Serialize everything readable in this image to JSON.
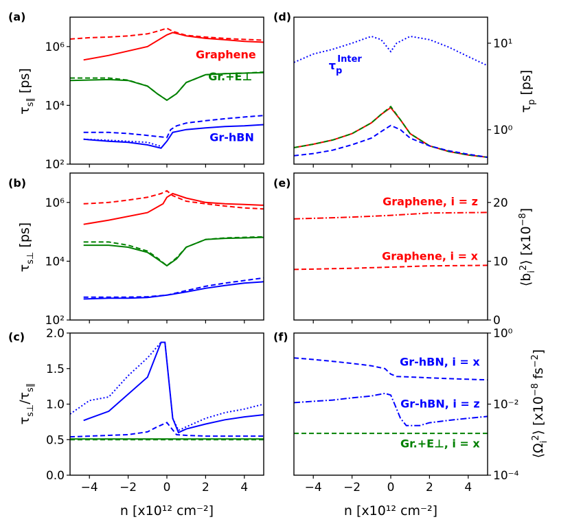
{
  "figure": {
    "panel_labels": [
      "(a)",
      "(b)",
      "(c)",
      "(d)",
      "(e)",
      "(f)"
    ],
    "x_axis_label": "n [x10¹² cm⁻²]",
    "colors": {
      "graphene": "#ff0000",
      "gr_eperp": "#008000",
      "gr_hbn": "#0000ff"
    }
  },
  "chart_data": [
    {
      "id": "a",
      "type": "line",
      "label": "(a)",
      "ylabel": "τ_s∥ [ps]",
      "yscale": "log",
      "ylim": [
        100,
        10000000
      ],
      "xlim": [
        -5,
        5
      ],
      "xticks": [
        -4,
        -2,
        0,
        2,
        4
      ],
      "yticks": [
        "10²",
        "10⁴",
        "10⁶"
      ],
      "annotations": [
        {
          "text": "Graphene",
          "color": "#ff0000",
          "x": 4.6,
          "y": 400000
        },
        {
          "text": "Gr.+E⊥",
          "color": "#008000",
          "x": 4.4,
          "y": 70000
        },
        {
          "text": "Gr-hBN",
          "color": "#0000ff",
          "x": 4.5,
          "y": 600
        }
      ],
      "series": [
        {
          "color": "#ff0000",
          "style": "solid",
          "x": [
            -4.3,
            -3,
            -1,
            0,
            0.3,
            1,
            2,
            3,
            4,
            5
          ],
          "y": [
            350000,
            500000,
            1000000,
            2500000,
            3000000,
            2300000,
            1900000,
            1700000,
            1500000,
            1400000
          ]
        },
        {
          "color": "#ff0000",
          "style": "dashed",
          "x": [
            -5,
            -4,
            -3,
            -2,
            -1,
            -0.5,
            0,
            0.3,
            1,
            2,
            3,
            4,
            5
          ],
          "y": [
            1800000,
            2000000,
            2100000,
            2300000,
            2700000,
            3300000,
            4200000,
            3300000,
            2400000,
            2100000,
            1900000,
            1750000,
            1650000
          ]
        },
        {
          "color": "#008000",
          "style": "solid",
          "x": [
            -5,
            -3,
            -2,
            -1,
            -0.5,
            0,
            0.5,
            1,
            2,
            3,
            4,
            5
          ],
          "y": [
            70000,
            75000,
            70000,
            45000,
            25000,
            15000,
            25000,
            60000,
            110000,
            120000,
            125000,
            130000
          ]
        },
        {
          "color": "#008000",
          "style": "dashed",
          "x": [
            -5,
            -3,
            -2,
            -1,
            -0.5,
            0,
            0.5,
            1,
            2,
            3,
            4,
            5
          ],
          "y": [
            85000,
            85000,
            72000,
            45000,
            25000,
            15000,
            25000,
            60000,
            110000,
            120000,
            125000,
            135000
          ]
        },
        {
          "color": "#0000ff",
          "style": "solid",
          "x": [
            -4.3,
            -3,
            -2,
            -1,
            -0.3,
            0,
            0.3,
            1,
            2,
            3,
            4,
            5
          ],
          "y": [
            700,
            600,
            550,
            450,
            350,
            600,
            1200,
            1500,
            1700,
            1900,
            2000,
            2200
          ]
        },
        {
          "color": "#0000ff",
          "style": "dashed",
          "x": [
            -4.3,
            -3,
            -2,
            -1,
            0,
            0.2,
            0.5,
            1,
            2,
            3,
            4,
            5
          ],
          "y": [
            1200,
            1200,
            1100,
            950,
            800,
            1500,
            2000,
            2500,
            3000,
            3500,
            4000,
            4500
          ]
        },
        {
          "color": "#0000ff",
          "style": "dotted",
          "x": [
            -4.3,
            -3,
            -2,
            -1,
            -0.3
          ],
          "y": [
            700,
            650,
            600,
            550,
            400
          ]
        }
      ]
    },
    {
      "id": "b",
      "type": "line",
      "label": "(b)",
      "ylabel": "τ_s⊥ [ps]",
      "yscale": "log",
      "ylim": [
        100,
        10000000
      ],
      "xlim": [
        -5,
        5
      ],
      "xticks": [
        -4,
        -2,
        0,
        2,
        4
      ],
      "yticks": [
        "10²",
        "10⁴",
        "10⁶"
      ],
      "series": [
        {
          "color": "#ff0000",
          "style": "solid",
          "x": [
            -4.3,
            -3,
            -1,
            -0.2,
            0,
            0.3,
            1,
            2,
            3,
            4,
            5
          ],
          "y": [
            180000,
            250000,
            450000,
            900000,
            1500000,
            2000000,
            1400000,
            1000000,
            900000,
            850000,
            800000
          ]
        },
        {
          "color": "#ff0000",
          "style": "dashed",
          "x": [
            -4.3,
            -3,
            -2,
            -1,
            -0.3,
            0,
            0.3,
            1,
            2,
            3,
            4,
            5
          ],
          "y": [
            900000,
            1000000,
            1200000,
            1500000,
            2000000,
            2500000,
            1700000,
            1100000,
            900000,
            750000,
            650000,
            600000
          ]
        },
        {
          "color": "#008000",
          "style": "solid",
          "x": [
            -4.3,
            -3,
            -2,
            -1,
            -0.5,
            0,
            0.5,
            1,
            2,
            3,
            4,
            5
          ],
          "y": [
            35000,
            35000,
            30000,
            20000,
            12000,
            7000,
            12000,
            30000,
            55000,
            60000,
            62000,
            65000
          ]
        },
        {
          "color": "#008000",
          "style": "dashed",
          "x": [
            -4.3,
            -3,
            -2,
            -1,
            -0.5,
            0,
            0.5,
            1,
            2,
            3,
            4,
            5
          ],
          "y": [
            45000,
            45000,
            35000,
            22000,
            13000,
            7000,
            13000,
            30000,
            55000,
            62000,
            65000,
            68000
          ]
        },
        {
          "color": "#0000ff",
          "style": "solid",
          "x": [
            -4.3,
            -3,
            -2,
            -1,
            0,
            1,
            2,
            3,
            4,
            5
          ],
          "y": [
            520,
            550,
            550,
            580,
            700,
            900,
            1200,
            1500,
            1800,
            2000
          ]
        },
        {
          "color": "#0000ff",
          "style": "dashed",
          "x": [
            -4.3,
            -3,
            -2,
            -1,
            0,
            1,
            2,
            3,
            4,
            5
          ],
          "y": [
            600,
            600,
            600,
            620,
            700,
            1000,
            1400,
            1800,
            2200,
            2700
          ]
        }
      ]
    },
    {
      "id": "c",
      "type": "line",
      "label": "(c)",
      "ylabel": "τ_s⊥/τ_s∥",
      "yscale": "linear",
      "ylim": [
        0,
        2.0
      ],
      "xlim": [
        -5,
        5
      ],
      "xticks": [
        -4,
        -2,
        0,
        2,
        4
      ],
      "yticks": [
        "0.0",
        "0.5",
        "1.0",
        "1.5",
        "2.0"
      ],
      "series": [
        {
          "color": "#0000ff",
          "style": "solid",
          "x": [
            -4.3,
            -3,
            -1,
            -0.3,
            -0.1,
            0.3,
            0.6,
            1,
            2,
            3,
            4,
            5
          ],
          "y": [
            0.77,
            0.9,
            1.38,
            1.87,
            1.87,
            0.8,
            0.6,
            0.65,
            0.72,
            0.78,
            0.82,
            0.85
          ]
        },
        {
          "color": "#0000ff",
          "style": "dotted",
          "x": [
            -5,
            -4,
            -3,
            -2,
            -1,
            -0.3,
            -0.1,
            0.3,
            0.6,
            1,
            2,
            3,
            4,
            5
          ],
          "y": [
            0.86,
            1.05,
            1.1,
            1.4,
            1.65,
            1.87,
            1.87,
            0.8,
            0.63,
            0.68,
            0.8,
            0.88,
            0.93,
            1.0
          ]
        },
        {
          "color": "#0000ff",
          "style": "dashed",
          "x": [
            -5,
            -4,
            -3,
            -2,
            -1,
            -0.5,
            0,
            0.5,
            1,
            2,
            3,
            4,
            5
          ],
          "y": [
            0.54,
            0.55,
            0.56,
            0.57,
            0.61,
            0.68,
            0.74,
            0.57,
            0.56,
            0.55,
            0.55,
            0.55,
            0.55
          ]
        },
        {
          "color": "#008000",
          "style": "solid",
          "x": [
            -5,
            5
          ],
          "y": [
            0.51,
            0.51
          ]
        },
        {
          "color": "#008000",
          "style": "dashed",
          "x": [
            -5,
            5
          ],
          "y": [
            0.5,
            0.5
          ]
        }
      ]
    },
    {
      "id": "d",
      "type": "line",
      "label": "(d)",
      "ylabel": "τ_p [ps]",
      "yscale": "log",
      "ylim": [
        0.4,
        20
      ],
      "xlim": [
        -5,
        5
      ],
      "xticks": [
        -4,
        -2,
        0,
        2,
        4
      ],
      "yticks": [
        "10⁰",
        "10¹"
      ],
      "annotations": [
        {
          "text": "τ_p^Inter",
          "color": "#0000ff",
          "x": -3.2,
          "y": 5
        }
      ],
      "series": [
        {
          "color": "#0000ff",
          "style": "dotted",
          "x": [
            -5,
            -4,
            -3,
            -2,
            -1,
            -0.5,
            0,
            0.3,
            1,
            2,
            3,
            4,
            5
          ],
          "y": [
            6,
            7.5,
            8.5,
            10,
            12,
            11,
            8,
            10,
            12,
            11,
            9,
            7,
            5.5
          ]
        },
        {
          "color": "#ff0000",
          "style": "solid",
          "x": [
            -5,
            -4,
            -3,
            -2,
            -1,
            -0.5,
            0,
            0.5,
            1,
            2,
            3,
            4,
            5
          ],
          "y": [
            0.62,
            0.68,
            0.76,
            0.9,
            1.2,
            1.5,
            1.8,
            1.3,
            0.9,
            0.65,
            0.56,
            0.51,
            0.48
          ]
        },
        {
          "color": "#008000",
          "style": "dashed",
          "x": [
            -5,
            -4,
            -3,
            -2,
            -1,
            -0.5,
            0,
            0.5,
            1,
            2,
            3,
            4,
            5
          ],
          "y": [
            0.62,
            0.68,
            0.76,
            0.9,
            1.2,
            1.5,
            1.85,
            1.3,
            0.9,
            0.65,
            0.56,
            0.51,
            0.48
          ]
        },
        {
          "color": "#0000ff",
          "style": "dashed",
          "x": [
            -5,
            -4,
            -3,
            -2,
            -1,
            -0.5,
            0,
            0.5,
            1,
            2,
            3,
            4,
            5
          ],
          "y": [
            0.5,
            0.53,
            0.58,
            0.67,
            0.8,
            0.95,
            1.12,
            1.0,
            0.8,
            0.65,
            0.57,
            0.52,
            0.48
          ]
        }
      ]
    },
    {
      "id": "e",
      "type": "line",
      "label": "(e)",
      "ylabel": "⟨b_i²⟩ [x10⁻⁸]",
      "yscale": "linear",
      "ylim": [
        0,
        25
      ],
      "xlim": [
        -5,
        5
      ],
      "xticks": [
        -4,
        -2,
        0,
        2,
        4
      ],
      "yticks": [
        "0",
        "10",
        "20"
      ],
      "annotations": [
        {
          "text": "Graphene, i = z",
          "color": "#ff0000",
          "x": 4.5,
          "y": 19.5
        },
        {
          "text": "Graphene, i = x",
          "color": "#ff0000",
          "x": 4.5,
          "y": 10.2
        }
      ],
      "series": [
        {
          "color": "#ff0000",
          "style": "dashdot",
          "x": [
            -5,
            -2,
            0,
            2,
            5
          ],
          "y": [
            17.2,
            17.5,
            17.8,
            18.2,
            18.3
          ]
        },
        {
          "color": "#ff0000",
          "style": "dashed",
          "x": [
            -5,
            -2,
            0,
            2,
            5
          ],
          "y": [
            8.6,
            8.8,
            9.0,
            9.2,
            9.3
          ]
        }
      ]
    },
    {
      "id": "f",
      "type": "line",
      "label": "(f)",
      "ylabel": "⟨Ω_i²⟩ [x10⁻⁸ fs⁻²]",
      "yscale": "log",
      "ylim": [
        0.0001,
        1
      ],
      "xlim": [
        -5,
        5
      ],
      "xticks": [
        -4,
        -2,
        0,
        2,
        4
      ],
      "yticks": [
        "10⁻⁴",
        "10⁻²",
        "10⁰"
      ],
      "annotations": [
        {
          "text": "Gr-hBN, i = x",
          "color": "#0000ff",
          "x": 4.6,
          "y": 0.12
        },
        {
          "text": "Gr-hBN, i = z",
          "color": "#0000ff",
          "x": 4.6,
          "y": 0.008
        },
        {
          "text": "Gr.+E⊥, i = x",
          "color": "#008000",
          "x": 4.6,
          "y": 0.0006
        }
      ],
      "series": [
        {
          "color": "#0000ff",
          "style": "dashed",
          "x": [
            -5,
            -4,
            -3,
            -2,
            -1,
            -0.3,
            0,
            0.3,
            1,
            2,
            3,
            4,
            5
          ],
          "y": [
            0.2,
            0.18,
            0.16,
            0.14,
            0.12,
            0.1,
            0.07,
            0.06,
            0.058,
            0.055,
            0.052,
            0.05,
            0.048
          ]
        },
        {
          "color": "#0000ff",
          "style": "dashdot",
          "x": [
            -5,
            -4,
            -3,
            -2,
            -1,
            -0.3,
            0,
            0.2,
            0.5,
            0.8,
            1.5,
            2,
            3,
            4,
            5
          ],
          "y": [
            0.011,
            0.012,
            0.013,
            0.015,
            0.017,
            0.02,
            0.018,
            0.01,
            0.004,
            0.0025,
            0.0025,
            0.003,
            0.0035,
            0.004,
            0.0045
          ]
        },
        {
          "color": "#008000",
          "style": "dashed",
          "x": [
            -5,
            5
          ],
          "y": [
            0.0015,
            0.0015
          ]
        }
      ]
    }
  ]
}
